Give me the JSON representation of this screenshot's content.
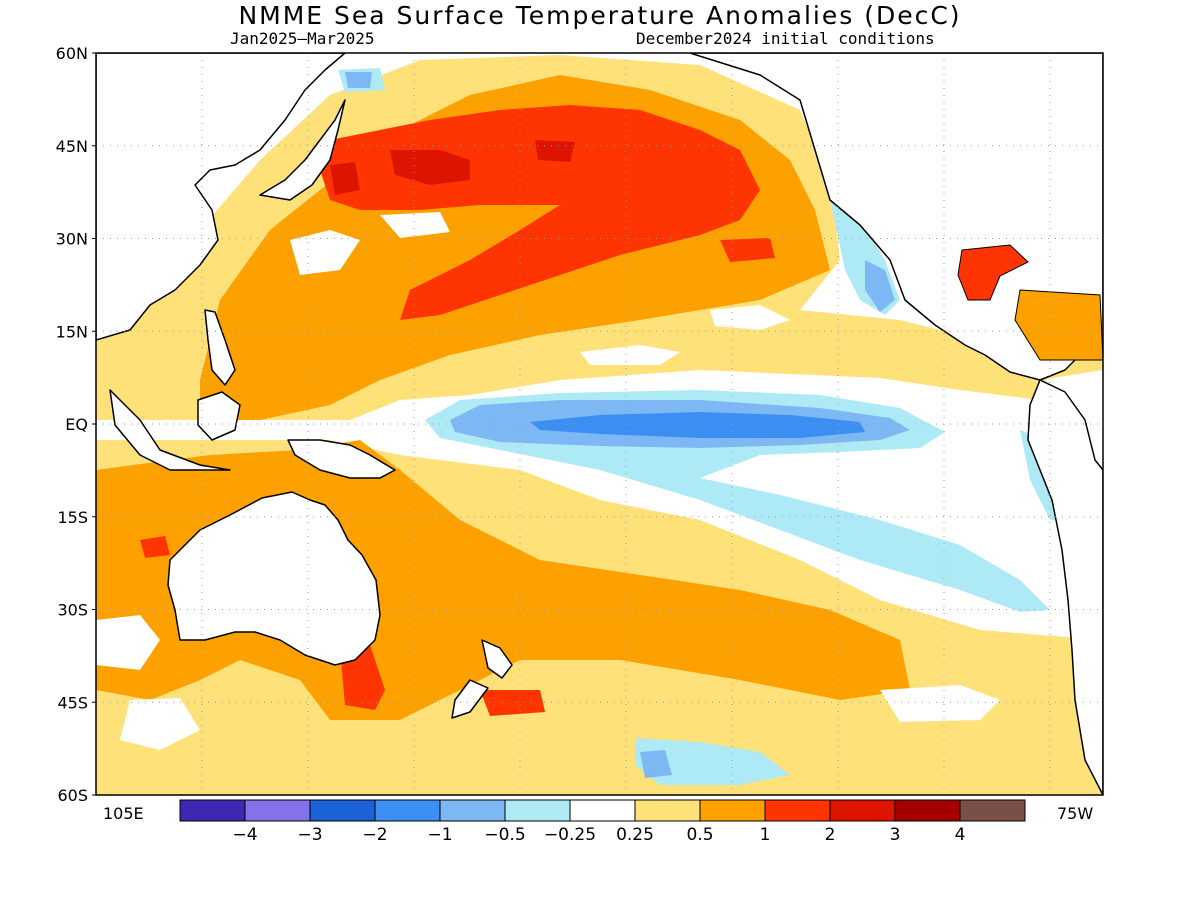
{
  "title": "NMME Sea Surface Temperature Anomalies (DecC)",
  "period": "Jan2025–Mar2025",
  "initial_conditions": "December2024 initial conditions",
  "lat_labels": [
    "60N",
    "45N",
    "30N",
    "15N",
    "EQ",
    "15S",
    "30S",
    "45S",
    "60S"
  ],
  "lon_left": "105E",
  "lon_right": "75W",
  "colorbar": {
    "colors": [
      "#3f27b3",
      "#8473e8",
      "#1b62d6",
      "#3b8ff2",
      "#7db8f5",
      "#aeeaf5",
      "#ffffff",
      "#ffe17a",
      "#fca100",
      "#fe3500",
      "#dd1500",
      "#a50000",
      "#7a5046"
    ],
    "labels": [
      "−4",
      "−3",
      "−2",
      "−1",
      "−0.5",
      "−0.25",
      "0.25",
      "0.5",
      "1",
      "2",
      "3",
      "4"
    ]
  }
}
